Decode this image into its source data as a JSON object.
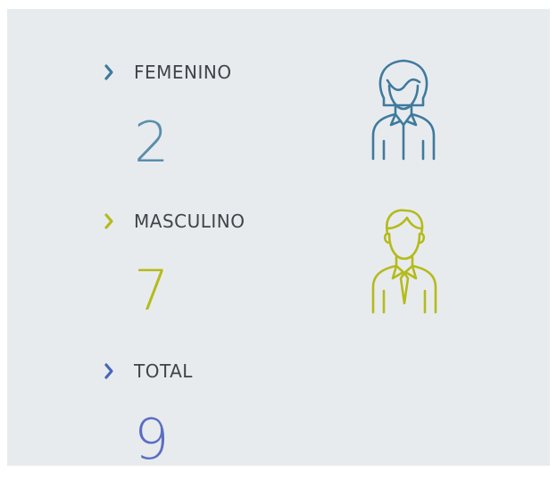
{
  "items": [
    {
      "label": "FEMENINO",
      "value": 2
    },
    {
      "label": "MASCULINO",
      "value": 7
    },
    {
      "label": "TOTAL",
      "value": 9
    }
  ]
}
